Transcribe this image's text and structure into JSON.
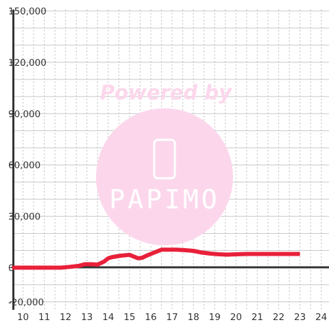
{
  "chart_data": {
    "type": "line",
    "title": "",
    "xlabel": "",
    "ylabel": "",
    "xlim": [
      9.5,
      24.3
    ],
    "ylim": [
      -20000,
      150000
    ],
    "x_ticks": [
      10,
      11,
      12,
      13,
      14,
      15,
      16,
      17,
      18,
      19,
      20,
      21,
      22,
      23,
      24
    ],
    "y_ticks": [
      -20000,
      0,
      30000,
      60000,
      90000,
      120000,
      150000
    ],
    "y_tick_labels": [
      "-20,000",
      "0",
      "30,000",
      "60,000",
      "90,000",
      "120,000",
      "150,000"
    ],
    "grid": true,
    "series": [
      {
        "color": "#e8203a",
        "x": [
          9.5,
          10.0,
          11.0,
          11.8,
          12.2,
          12.6,
          12.9,
          13.2,
          13.5,
          13.8,
          14.0,
          14.2,
          14.6,
          15.0,
          15.2,
          15.4,
          15.6,
          15.8,
          16.0,
          16.2,
          16.5,
          16.8,
          17.2,
          17.6,
          18.0,
          18.4,
          18.8,
          19.2,
          19.6,
          20.0,
          20.5,
          21.0,
          22.0,
          23.0
        ],
        "y": [
          0,
          0,
          0,
          0,
          500,
          1000,
          2000,
          2000,
          1800,
          3500,
          5500,
          6200,
          7000,
          7500,
          6500,
          5500,
          5800,
          7000,
          8000,
          9000,
          10500,
          10500,
          10500,
          10200,
          9800,
          8800,
          8200,
          7800,
          7600,
          7800,
          8000,
          8000,
          8000,
          8000
        ]
      }
    ]
  },
  "watermark": {
    "text": "Powered by",
    "logo": "PAPIMO",
    "color": "#fcd7ec"
  }
}
